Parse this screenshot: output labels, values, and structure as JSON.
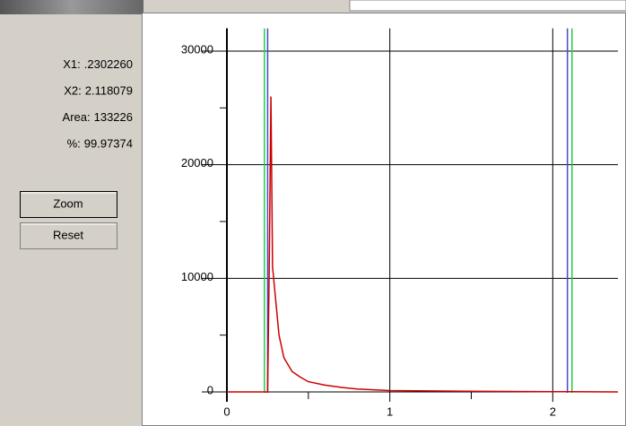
{
  "readout": [
    {
      "label": "X1:",
      "value": ".2302260"
    },
    {
      "label": "X2:",
      "value": "2.118079"
    },
    {
      "label": "Area:",
      "value": "133226"
    },
    {
      "label": "%:",
      "value": "99.97374"
    }
  ],
  "buttons": [
    "Zoom",
    "Reset"
  ],
  "chart_data": {
    "type": "line",
    "x": [
      0,
      0.23,
      0.25,
      0.26,
      0.27,
      0.28,
      0.3,
      0.32,
      0.35,
      0.4,
      0.45,
      0.5,
      0.6,
      0.7,
      0.8,
      1.0,
      1.5,
      2.0,
      2.4
    ],
    "values": [
      0,
      0,
      0,
      11000,
      26000,
      11000,
      8000,
      5000,
      3000,
      1800,
      1300,
      900,
      600,
      400,
      250,
      120,
      60,
      20,
      0
    ],
    "color": "#cc0000",
    "xlim": [
      0,
      2.4
    ],
    "ylim": [
      0,
      32000
    ],
    "xticks": [
      0,
      1,
      2
    ],
    "xminor": [
      0.5,
      1.5
    ],
    "yticks": [
      0,
      10000,
      20000,
      30000
    ],
    "yminor": [
      5000,
      15000,
      25000
    ],
    "grid": true,
    "markers": [
      {
        "x": 0.230226,
        "color": "#22cc44"
      },
      {
        "x": 2.118079,
        "color": "#22cc44"
      },
      {
        "x": 0.25,
        "color": "#4848c8"
      },
      {
        "x": 2.09,
        "color": "#4848c8"
      }
    ]
  }
}
